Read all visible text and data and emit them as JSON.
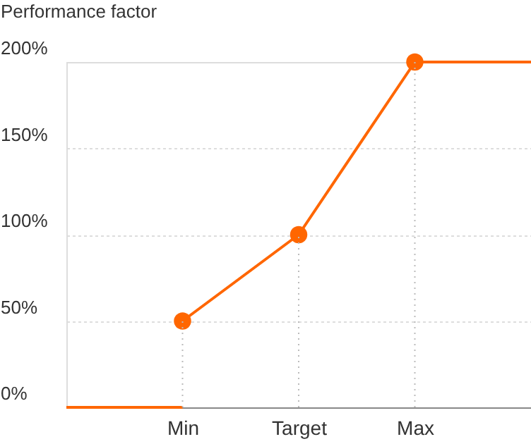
{
  "chart_data": {
    "type": "line",
    "ylabel": "Performance factor",
    "categories": [
      null,
      "Min",
      "Target",
      "Max",
      null
    ],
    "series": [
      {
        "color": "#ff6600",
        "values": [
          0,
          0,
          null,
          null,
          null
        ],
        "marker": "none"
      },
      {
        "color": "#ff6600",
        "values": [
          null,
          50,
          100,
          200,
          null
        ],
        "marker": "circle"
      },
      {
        "color": "#ff6600",
        "values": [
          null,
          null,
          null,
          200,
          200
        ],
        "marker": "none"
      }
    ],
    "ylim": [
      0,
      200
    ],
    "yticks": [
      {
        "value": 0,
        "label": "0%"
      },
      {
        "value": 50,
        "label": "50%"
      },
      {
        "value": 100,
        "label": "100%"
      },
      {
        "value": 150,
        "label": "150%"
      },
      {
        "value": 200,
        "label": "200%"
      }
    ],
    "grid": "y",
    "line_style": "solid",
    "ref_lines": [
      {
        "axis": "x",
        "value": "Min",
        "color": "#bbbbbb",
        "line_style": "dotted"
      },
      {
        "axis": "x",
        "value": "Target",
        "color": "#bbbbbb",
        "line_style": "dotted"
      },
      {
        "axis": "x",
        "value": "Max",
        "color": "#bbbbbb",
        "line_style": "dotted"
      }
    ]
  }
}
